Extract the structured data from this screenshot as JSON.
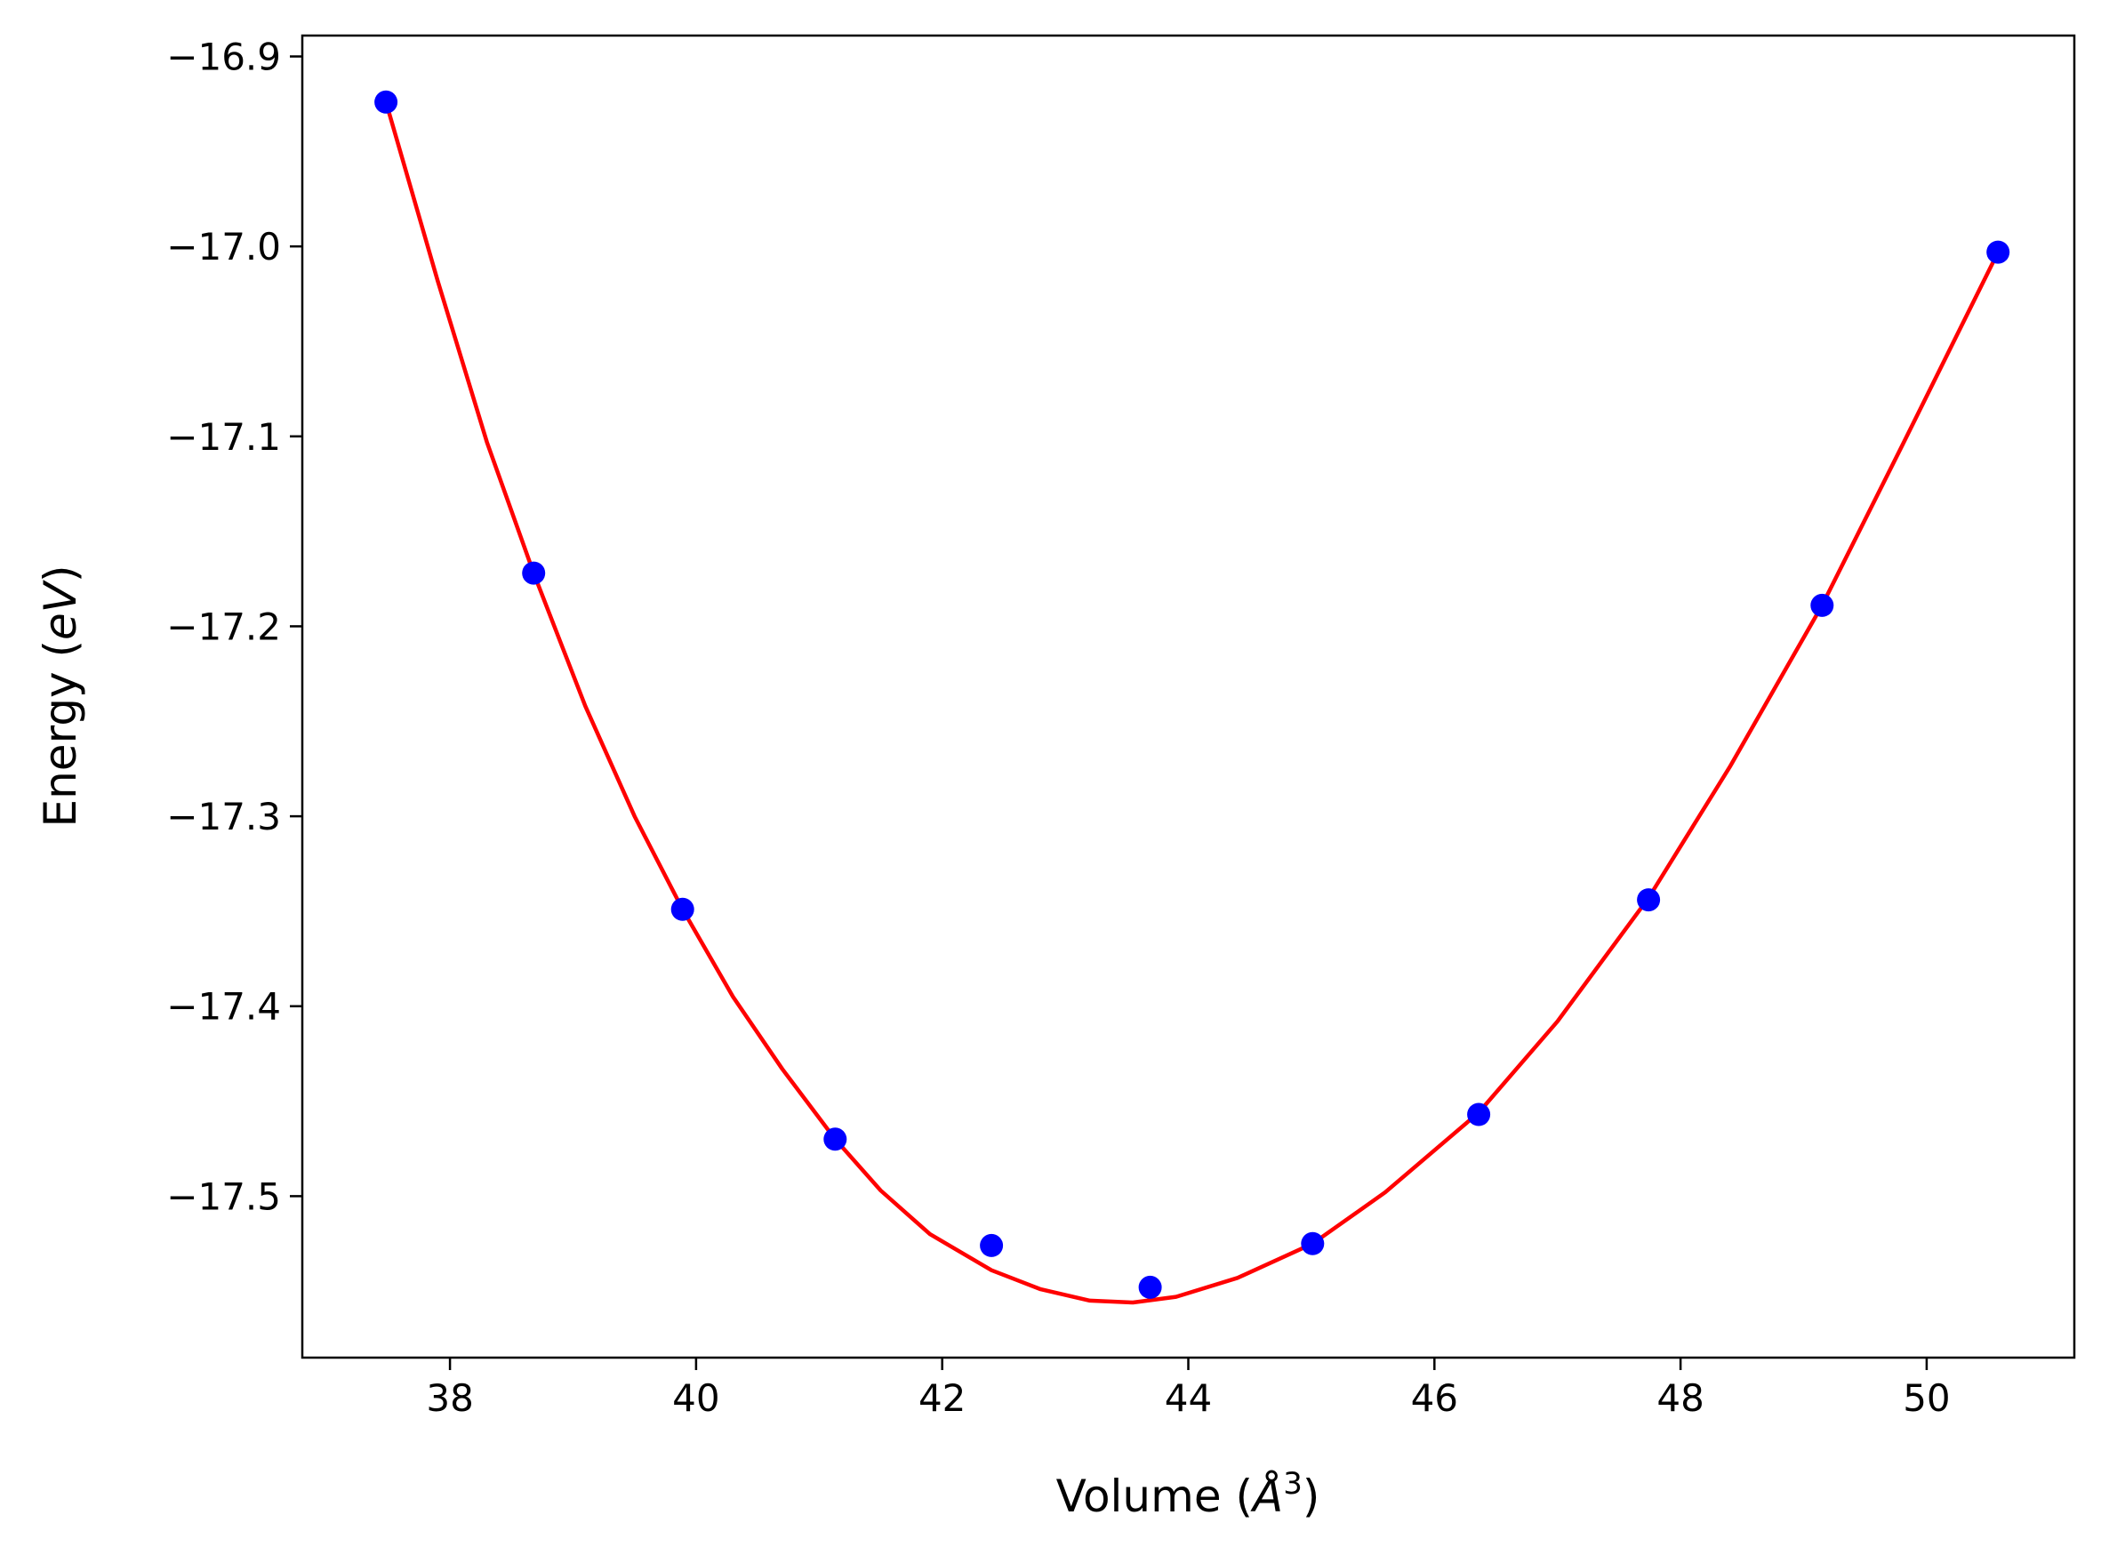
{
  "chart_data": {
    "type": "scatter",
    "title": "",
    "xlabel_prefix": "Volume (",
    "xlabel_symbol": "Å",
    "xlabel_exp": "3",
    "xlabel_suffix": ")",
    "ylabel_prefix": "Energy (",
    "ylabel_italic": "eV",
    "ylabel_suffix": ")",
    "xlim": [
      36.8,
      51.2
    ],
    "ylim": [
      -17.585,
      -16.889
    ],
    "xticks": [
      38,
      40,
      42,
      44,
      46,
      48,
      50
    ],
    "xtick_labels": [
      "38",
      "40",
      "42",
      "44",
      "46",
      "48",
      "50"
    ],
    "yticks": [
      -16.9,
      -17.0,
      -17.1,
      -17.2,
      -17.3,
      -17.4,
      -17.5
    ],
    "ytick_labels": [
      "−16.9",
      "−17.0",
      "−17.1",
      "−17.2",
      "−17.3",
      "−17.4",
      "−17.5"
    ],
    "grid": false,
    "series": [
      {
        "kind": "points",
        "color": "#0000ff",
        "x": [
          37.48,
          38.68,
          39.89,
          41.13,
          42.4,
          43.69,
          45.01,
          46.36,
          47.74,
          49.15,
          50.58
        ],
        "y": [
          -16.924,
          -17.172,
          -17.349,
          -17.47,
          -17.526,
          -17.548,
          -17.525,
          -17.457,
          -17.344,
          -17.189,
          -17.003
        ]
      },
      {
        "kind": "fit-curve",
        "color": "#ff0000",
        "x": [
          37.48,
          37.9,
          38.3,
          38.68,
          39.1,
          39.5,
          39.89,
          40.3,
          40.7,
          41.13,
          41.5,
          41.9,
          42.4,
          42.8,
          43.2,
          43.55,
          43.9,
          44.4,
          45.01,
          45.6,
          46.36,
          47.0,
          47.74,
          48.4,
          49.15,
          49.8,
          50.58
        ],
        "y": [
          -16.924,
          -17.018,
          -17.103,
          -17.172,
          -17.242,
          -17.3,
          -17.349,
          -17.395,
          -17.433,
          -17.47,
          -17.497,
          -17.52,
          -17.539,
          -17.549,
          -17.555,
          -17.556,
          -17.553,
          -17.543,
          -17.525,
          -17.498,
          -17.456,
          -17.408,
          -17.343,
          -17.274,
          -17.189,
          -17.105,
          -17.003
        ]
      }
    ]
  }
}
